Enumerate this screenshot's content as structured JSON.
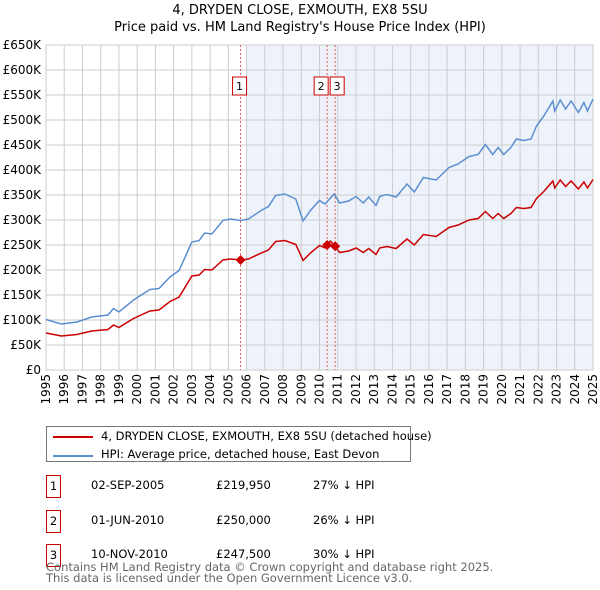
{
  "title": "4, DRYDEN CLOSE, EXMOUTH, EX8 5SU",
  "subtitle": "Price paid vs. HM Land Registry's House Price Index (HPI)",
  "colors": {
    "property": "#cc0000",
    "hpi": "#5b8fd1",
    "shade": "#eef3fb",
    "grid": "#cccccc"
  },
  "chart_data": {
    "type": "line",
    "title": "Price paid vs. HM Land Registry's House Price Index (HPI)",
    "xlim": [
      1995,
      2025
    ],
    "ylim": [
      0,
      650000
    ],
    "yticks": [
      "£0",
      "£50K",
      "£100K",
      "£150K",
      "£200K",
      "£250K",
      "£300K",
      "£350K",
      "£400K",
      "£450K",
      "£500K",
      "£550K",
      "£600K",
      "£650K"
    ],
    "xticks": [
      "1995",
      "1996",
      "1997",
      "1998",
      "1999",
      "2000",
      "2001",
      "2002",
      "2003",
      "2004",
      "2005",
      "2006",
      "2007",
      "2008",
      "2009",
      "2010",
      "2011",
      "2012",
      "2013",
      "2014",
      "2015",
      "2016",
      "2017",
      "2018",
      "2019",
      "2020",
      "2021",
      "2022",
      "2023",
      "2024",
      "2025"
    ],
    "grid": true,
    "shaded_from": 2006,
    "series": [
      {
        "name": "4, DRYDEN CLOSE, EXMOUTH, EX8 5SU (detached house)",
        "color": "#cc0000",
        "x": [
          1995.0,
          1995.84,
          1996.7,
          1997.5,
          1998.4,
          1998.7,
          1999.0,
          1999.8,
          2000.7,
          2001.2,
          2001.8,
          2002.3,
          2003.0,
          2003.4,
          2003.7,
          2004.1,
          2004.7,
          2005.1,
          2005.7,
          2006.1,
          2006.8,
          2007.2,
          2007.6,
          2008.1,
          2008.7,
          2009.1,
          2009.5,
          2010.0,
          2010.3,
          2010.6,
          2010.86,
          2011.1,
          2011.6,
          2012.0,
          2012.4,
          2012.7,
          2013.1,
          2013.3,
          2013.7,
          2014.2,
          2014.8,
          2015.2,
          2015.7,
          2016.4,
          2017.1,
          2017.6,
          2018.2,
          2018.7,
          2019.1,
          2019.5,
          2019.8,
          2020.1,
          2020.5,
          2020.8,
          2021.2,
          2021.6,
          2021.9,
          2022.3,
          2022.8,
          2022.9,
          2023.2,
          2023.5,
          2023.8,
          2024.2,
          2024.5,
          2024.7,
          2025.0
        ],
        "y": [
          74000,
          68000,
          71000,
          78000,
          81000,
          90000,
          85000,
          103000,
          118000,
          120000,
          137000,
          146000,
          188000,
          190000,
          201000,
          200000,
          220000,
          222000,
          220000,
          222000,
          234000,
          240000,
          257000,
          259000,
          251000,
          219000,
          234000,
          249000,
          244000,
          258000,
          247500,
          235000,
          238000,
          244000,
          235000,
          243000,
          231000,
          244000,
          247000,
          243000,
          262000,
          250000,
          271000,
          267000,
          285000,
          290000,
          300000,
          303000,
          317000,
          303000,
          313000,
          303000,
          313000,
          325000,
          323000,
          325000,
          343000,
          357000,
          378000,
          364000,
          380000,
          367000,
          378000,
          362000,
          376000,
          364000,
          381000
        ]
      },
      {
        "name": "HPI: Average price, detached house, East Devon",
        "color": "#5b8fd1",
        "x": [
          1995.0,
          1995.84,
          1996.7,
          1997.5,
          1998.4,
          1998.7,
          1999.0,
          1999.8,
          2000.7,
          2001.2,
          2001.8,
          2002.3,
          2003.0,
          2003.4,
          2003.7,
          2004.1,
          2004.7,
          2005.1,
          2005.7,
          2006.1,
          2006.8,
          2007.2,
          2007.6,
          2008.1,
          2008.7,
          2009.1,
          2009.5,
          2010.0,
          2010.3,
          2010.8,
          2011.1,
          2011.6,
          2012.0,
          2012.4,
          2012.7,
          2013.1,
          2013.3,
          2013.7,
          2014.2,
          2014.8,
          2015.2,
          2015.7,
          2016.4,
          2017.1,
          2017.6,
          2018.2,
          2018.7,
          2019.1,
          2019.5,
          2019.8,
          2020.1,
          2020.5,
          2020.8,
          2021.2,
          2021.6,
          2021.9,
          2022.3,
          2022.8,
          2022.9,
          2023.2,
          2023.5,
          2023.8,
          2024.2,
          2024.5,
          2024.7,
          2025.0
        ],
        "y": [
          101000,
          92000,
          96000,
          106000,
          110000,
          123000,
          116000,
          140000,
          161000,
          163000,
          186000,
          199000,
          256000,
          259000,
          274000,
          272000,
          299000,
          302000,
          299000,
          302000,
          319000,
          327000,
          349000,
          352000,
          342000,
          298000,
          319000,
          339000,
          332000,
          352000,
          334000,
          338000,
          347000,
          334000,
          346000,
          329000,
          347000,
          351000,
          346000,
          372000,
          356000,
          385000,
          380000,
          405000,
          412000,
          427000,
          431000,
          451000,
          431000,
          445000,
          431000,
          445000,
          462000,
          459000,
          462000,
          488000,
          508000,
          538000,
          518000,
          540000,
          522000,
          538000,
          515000,
          535000,
          518000,
          542000
        ]
      }
    ],
    "sales": [
      {
        "label": "1",
        "x": 2005.67,
        "y": 219950
      },
      {
        "label": "2",
        "x": 2010.42,
        "y": 250000
      },
      {
        "label": "3",
        "x": 2010.86,
        "y": 247500
      }
    ]
  },
  "legend": {
    "property": "4, DRYDEN CLOSE, EXMOUTH, EX8 5SU (detached house)",
    "hpi": "HPI: Average price, detached house, East Devon"
  },
  "transactions": [
    {
      "num": "1",
      "date": "02-SEP-2005",
      "price": "£219,950",
      "delta": "27% ↓ HPI"
    },
    {
      "num": "2",
      "date": "01-JUN-2010",
      "price": "£250,000",
      "delta": "26% ↓ HPI"
    },
    {
      "num": "3",
      "date": "10-NOV-2010",
      "price": "£247,500",
      "delta": "30% ↓ HPI"
    }
  ],
  "footer": {
    "line1": "Contains HM Land Registry data © Crown copyright and database right 2025.",
    "line2": "This data is licensed under the Open Government Licence v3.0."
  }
}
